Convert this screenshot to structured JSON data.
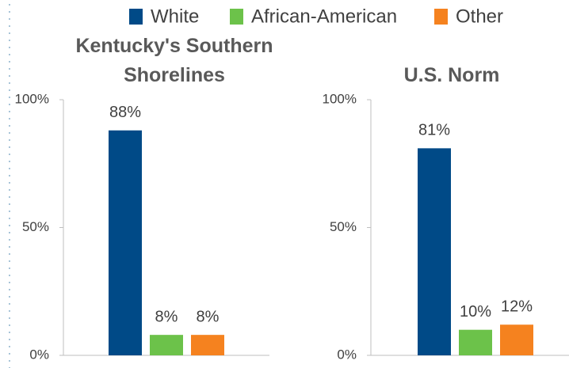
{
  "legend": {
    "series": [
      {
        "name": "White",
        "color": "#004a87"
      },
      {
        "name": "African-American",
        "color": "#6cc24a"
      },
      {
        "name": "Other",
        "color": "#f5821f"
      }
    ]
  },
  "chart_data": [
    {
      "type": "bar",
      "title": "Kentucky's Southern Shorelines",
      "values": [
        88,
        8,
        8
      ],
      "value_labels": [
        "88%",
        "8%",
        "8%"
      ],
      "ylim": [
        0,
        100
      ],
      "yticks": [
        {
          "value": 0,
          "label": "0%"
        },
        {
          "value": 50,
          "label": "50%"
        },
        {
          "value": 100,
          "label": "100%"
        }
      ]
    },
    {
      "type": "bar",
      "title": "U.S. Norm",
      "values": [
        81,
        10,
        12
      ],
      "value_labels": [
        "81%",
        "10%",
        "12%"
      ],
      "ylim": [
        0,
        100
      ],
      "yticks": [
        {
          "value": 0,
          "label": "0%"
        },
        {
          "value": 50,
          "label": "50%"
        },
        {
          "value": 100,
          "label": "100%"
        }
      ]
    }
  ]
}
